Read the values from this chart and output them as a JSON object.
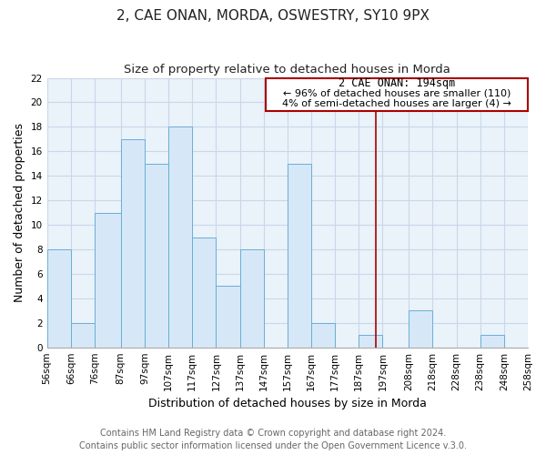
{
  "title": "2, CAE ONAN, MORDA, OSWESTRY, SY10 9PX",
  "subtitle": "Size of property relative to detached houses in Morda",
  "xlabel": "Distribution of detached houses by size in Morda",
  "ylabel": "Number of detached properties",
  "bar_edges": [
    56,
    66,
    76,
    87,
    97,
    107,
    117,
    127,
    137,
    147,
    157,
    167,
    177,
    187,
    197,
    208,
    218,
    228,
    238,
    248,
    258
  ],
  "bar_heights": [
    8,
    2,
    11,
    17,
    15,
    18,
    9,
    5,
    8,
    0,
    15,
    2,
    0,
    1,
    0,
    3,
    0,
    0,
    1,
    0
  ],
  "tick_labels": [
    "56sqm",
    "66sqm",
    "76sqm",
    "87sqm",
    "97sqm",
    "107sqm",
    "117sqm",
    "127sqm",
    "137sqm",
    "147sqm",
    "157sqm",
    "167sqm",
    "177sqm",
    "187sqm",
    "197sqm",
    "208sqm",
    "218sqm",
    "228sqm",
    "238sqm",
    "248sqm",
    "258sqm"
  ],
  "bar_color": "#d6e8f7",
  "bar_edge_color": "#6aaed6",
  "vline_x": 194,
  "vline_color": "#aa0000",
  "ylim": [
    0,
    22
  ],
  "yticks": [
    0,
    2,
    4,
    6,
    8,
    10,
    12,
    14,
    16,
    18,
    20,
    22
  ],
  "annotation_title": "2 CAE ONAN: 194sqm",
  "annotation_line1": "← 96% of detached houses are smaller (110)",
  "annotation_line2": "4% of semi-detached houses are larger (4) →",
  "annotation_box_color": "#aa0000",
  "grid_color": "#c8d8e8",
  "plot_bg_color": "#eaf2fa",
  "fig_bg_color": "#ffffff",
  "title_fontsize": 11,
  "subtitle_fontsize": 9.5,
  "axis_label_fontsize": 9,
  "tick_fontsize": 7.5,
  "footer_fontsize": 7,
  "ann_title_fontsize": 8.5,
  "ann_text_fontsize": 8,
  "footer_line1": "Contains HM Land Registry data © Crown copyright and database right 2024.",
  "footer_line2": "Contains public sector information licensed under the Open Government Licence v.3.0."
}
